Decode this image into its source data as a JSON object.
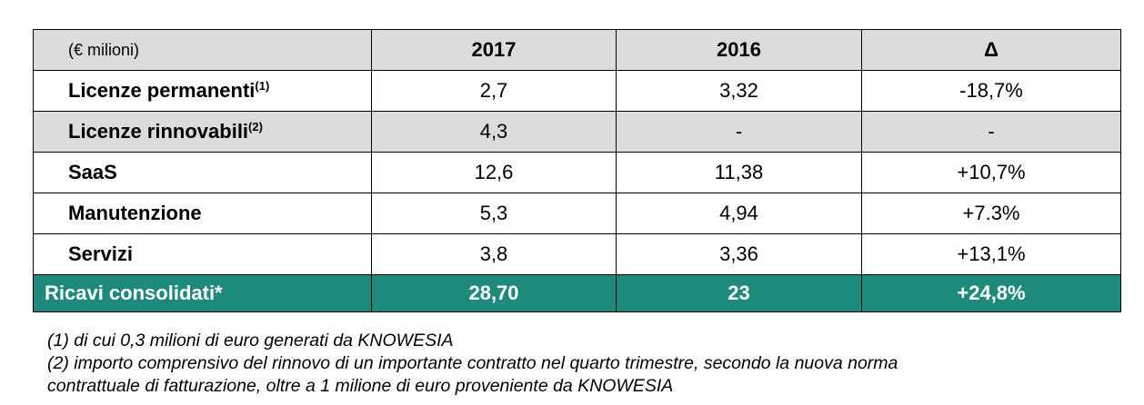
{
  "table": {
    "header": {
      "label": "(€ milioni)",
      "col_2017": "2017",
      "col_2016": "2016",
      "col_delta": "Δ"
    },
    "rows": [
      {
        "label": "Licenze permanenti",
        "note": "(1)",
        "v2017": "2,7",
        "v2016": "3,32",
        "delta": "-18,7%"
      },
      {
        "label": "Licenze rinnovabili",
        "note": "(2)",
        "v2017": "4,3",
        "v2016": "-",
        "delta": "-"
      },
      {
        "label": "SaaS",
        "note": "",
        "v2017": "12,6",
        "v2016": "11,38",
        "delta": "+10,7%"
      },
      {
        "label": "Manutenzione",
        "note": "",
        "v2017": "5,3",
        "v2016": "4,94",
        "delta": "+7.3%"
      },
      {
        "label": "Servizi",
        "note": "",
        "v2017": "3,8",
        "v2016": "3,36",
        "delta": "+13,1%"
      }
    ],
    "total": {
      "label": "Ricavi consolidati*",
      "v2017": "28,70",
      "v2016": "23",
      "delta": "+24,8%"
    }
  },
  "footnotes": {
    "note1": "(1) di cui 0,3 milioni di euro generati da KNOWESIA",
    "note2_line1": "(2) importo comprensivo del rinnovo di un importante contratto nel quarto trimestre, secondo la nuova norma",
    "note2_line2": "contrattuale di fatturazione, oltre a 1 milione di euro proveniente da KNOWESIA"
  },
  "colors": {
    "header_bg": "#dcdcdc",
    "total_bg": "#1e8a7c",
    "total_text": "#ffffff"
  }
}
